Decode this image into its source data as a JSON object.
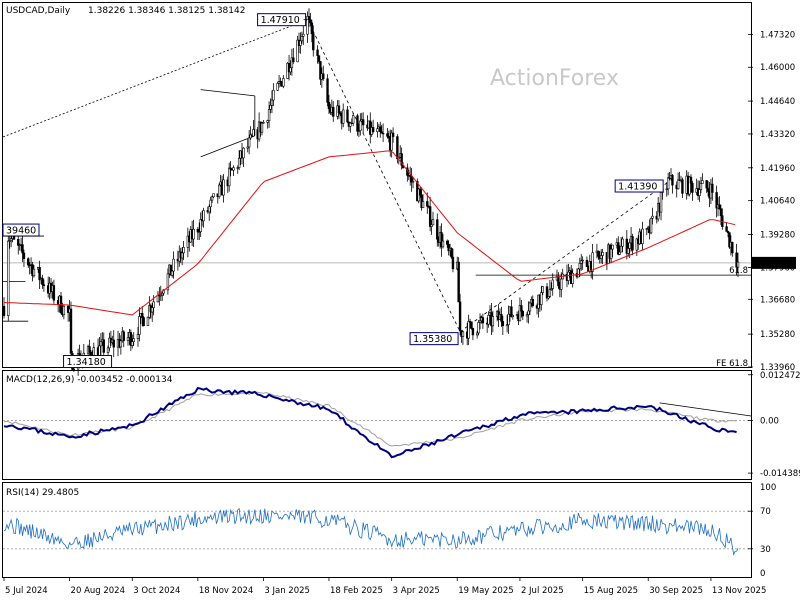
{
  "window": {
    "symbol_header": "USDCAD,Daily",
    "ohlc_header": "1.38226 1.38346 1.38125 1.38142",
    "watermark": "ActionForex"
  },
  "colors": {
    "candles": "#000000",
    "ma_line": "#e01010",
    "macd_line": "#00007f",
    "signal_line": "#a0a0a0",
    "rsi_line": "#1f6fc4",
    "annotation_box": "#00007f",
    "dotted_level": "#a0a0a0"
  },
  "chart_data": [
    {
      "type": "candlestick",
      "name": "USDCAD Daily",
      "ylim": [
        1.3396,
        1.4858
      ],
      "ytick_labels": [
        "1.47320",
        "1.46000",
        "1.44640",
        "1.43320",
        "1.41960",
        "1.40640",
        "1.39280",
        "1.37960",
        "1.36680",
        "1.35280",
        "1.33960"
      ],
      "xtick_labels": [
        "5 Jul 2024",
        "20 Aug 2024",
        "3 Oct 2024",
        "18 Nov 2024",
        "3 Jan 2025",
        "18 Feb 2025",
        "3 Apr 2025",
        "19 May 2025",
        "2 Jul 2025",
        "15 Aug 2025",
        "30 Sep 2025",
        "13 Nov 2025"
      ],
      "last_price_label": "1.38142",
      "pivot_labels": [
        "1.47910",
        "1.41390",
        "1.35380",
        "1.34180",
        "39460"
      ],
      "level_labels": [
        "61.8",
        "FE 61.8"
      ],
      "pivots": [
        {
          "date": "5 Jul 2024",
          "value": 1.3946
        },
        {
          "date": "20 Aug 2024",
          "value": 1.3418
        },
        {
          "date": "3 Feb 2025",
          "value": 1.4791
        },
        {
          "date": "21 May 2025",
          "value": 1.3538
        },
        {
          "date": "14 Oct 2025",
          "value": 1.4139
        },
        {
          "date": "2 Dec 2025",
          "value": 1.38142
        }
      ],
      "key_levels": [
        1.38142,
        1.3765
      ],
      "series": [
        {
          "name": "Close",
          "dates": [
            "5 Jul 2024",
            "20 Aug 2024",
            "3 Oct 2024",
            "18 Nov 2024",
            "3 Jan 2025",
            "18 Feb 2025",
            "3 Apr 2025",
            "19 May 2025",
            "2 Jul 2025",
            "15 Aug 2025",
            "30 Sep 2025",
            "13 Nov 2025"
          ],
          "values": [
            1.364,
            1.36,
            1.352,
            1.396,
            1.438,
            1.443,
            1.43,
            1.378,
            1.362,
            1.38,
            1.393,
            1.411
          ]
        },
        {
          "name": "Moving average",
          "dates": [
            "5 Jul 2024",
            "20 Aug 2024",
            "3 Oct 2024",
            "18 Nov 2024",
            "3 Jan 2025",
            "18 Feb 2025",
            "3 Apr 2025",
            "19 May 2025",
            "2 Jul 2025",
            "15 Aug 2025",
            "30 Sep 2025",
            "13 Nov 2025"
          ],
          "values": [
            1.3655,
            1.3645,
            1.3605,
            1.381,
            1.414,
            1.424,
            1.4265,
            1.3935,
            1.374,
            1.377,
            1.3875,
            1.399
          ]
        }
      ]
    },
    {
      "type": "line",
      "title": "MACD(12,26,9) -0.003452 -0.000134",
      "ylim": [
        -0.016,
        0.0135
      ],
      "ytick_labels": [
        "0.012472",
        "0.00",
        "-0.014389"
      ],
      "dates": [
        "5 Jul 2024",
        "20 Aug 2024",
        "3 Oct 2024",
        "18 Nov 2024",
        "3 Jan 2025",
        "18 Feb 2025",
        "3 Apr 2025",
        "19 May 2025",
        "2 Jul 2025",
        "15 Aug 2025",
        "30 Sep 2025",
        "13 Nov 2025"
      ],
      "series": [
        {
          "name": "MACD",
          "values": [
            -0.001,
            -0.0045,
            -0.0015,
            0.0085,
            0.007,
            0.003,
            -0.01,
            -0.004,
            0.0015,
            0.0025,
            0.004,
            -0.002
          ]
        },
        {
          "name": "Signal",
          "values": [
            0.0,
            -0.004,
            -0.002,
            0.007,
            0.0075,
            0.004,
            -0.007,
            -0.005,
            0.0,
            0.0025,
            0.003,
            0.0
          ]
        }
      ],
      "latest": {
        "macd": -0.003452,
        "signal": -0.000134
      }
    },
    {
      "type": "line",
      "title": "RSI(14) 29.4805",
      "ylim": [
        0,
        100
      ],
      "ytick_labels": [
        "100",
        "70",
        "30",
        "0"
      ],
      "levels": [
        70,
        30
      ],
      "dates": [
        "5 Jul 2024",
        "20 Aug 2024",
        "3 Oct 2024",
        "18 Nov 2024",
        "3 Jan 2025",
        "18 Feb 2025",
        "3 Apr 2025",
        "19 May 2025",
        "2 Jul 2025",
        "15 Aug 2025",
        "30 Sep 2025",
        "13 Nov 2025"
      ],
      "series": [
        {
          "name": "RSI",
          "values": [
            58,
            35,
            50,
            62,
            66,
            61,
            40,
            40,
            50,
            60,
            57,
            50
          ]
        }
      ],
      "latest": 29.4805
    }
  ]
}
